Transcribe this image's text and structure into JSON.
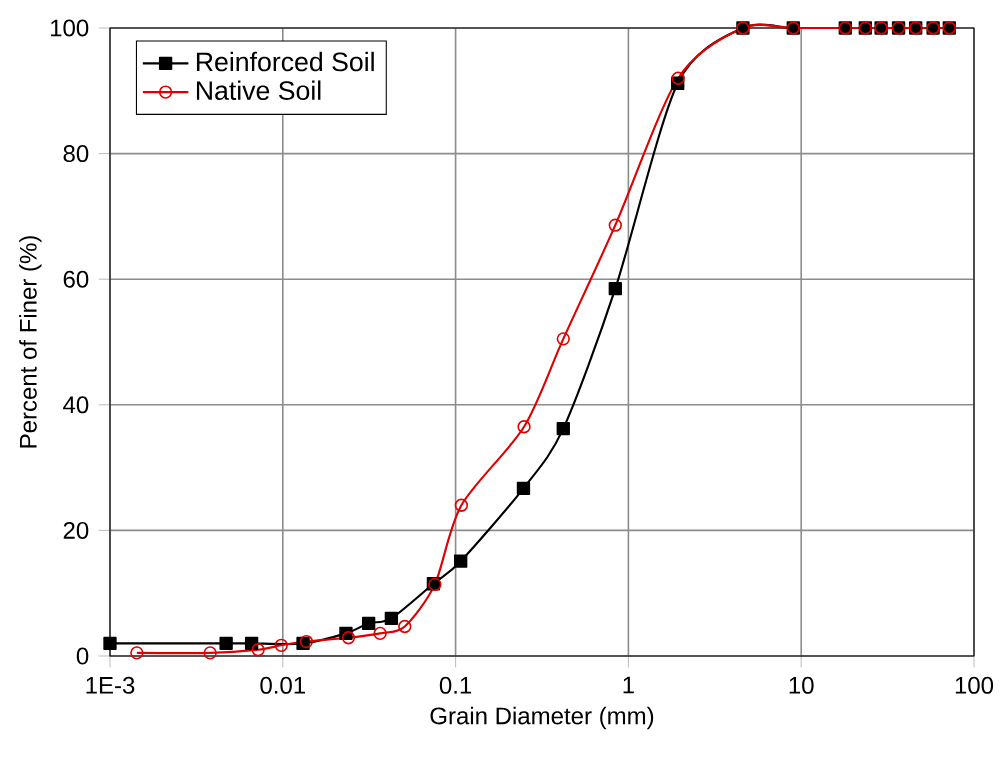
{
  "chart_data": {
    "type": "line",
    "xlabel": "Grain Diameter (mm)",
    "ylabel": "Percent of Finer (%)",
    "log": "x",
    "xlim": [
      0.001,
      100
    ],
    "ylim": [
      0,
      100
    ],
    "xticks": [
      {
        "value": 0.001,
        "label": "1E-3"
      },
      0.01,
      0.1,
      1,
      10,
      100
    ],
    "yticks": [
      0,
      20,
      40,
      60,
      80,
      100
    ],
    "grid": true,
    "legend": "top left",
    "series": [
      {
        "name": "Reinforced Soil",
        "color": "#000000",
        "marker": "square",
        "x": [
          0.001,
          0.0047,
          0.0066,
          0.0131,
          0.0232,
          0.0314,
          0.0425,
          0.0744,
          0.107,
          0.247,
          0.42,
          0.84,
          1.93,
          4.6,
          9.0,
          18,
          23.5,
          29,
          36.6,
          46,
          58,
          72
        ],
        "values": [
          2.0,
          2.0,
          2.0,
          2.0,
          3.6,
          5.2,
          6.0,
          11.5,
          15.1,
          26.7,
          36.2,
          58.5,
          91.2,
          100,
          100,
          100,
          100,
          100,
          100,
          100,
          100,
          100
        ]
      },
      {
        "name": "Native Soil",
        "color": "#e00000",
        "marker": "circle",
        "x": [
          0.00143,
          0.0038,
          0.0072,
          0.0098,
          0.0137,
          0.024,
          0.0366,
          0.0508,
          0.0758,
          0.108,
          0.249,
          0.42,
          0.84,
          1.94,
          4.6,
          9.0,
          18,
          23.5,
          29,
          36.6,
          46,
          58,
          72
        ],
        "values": [
          0.5,
          0.5,
          1.0,
          1.7,
          2.3,
          2.9,
          3.6,
          4.7,
          11.4,
          24.0,
          36.5,
          50.5,
          68.6,
          92.0,
          100,
          100,
          100,
          100,
          100,
          100,
          100,
          100,
          100
        ]
      }
    ]
  }
}
